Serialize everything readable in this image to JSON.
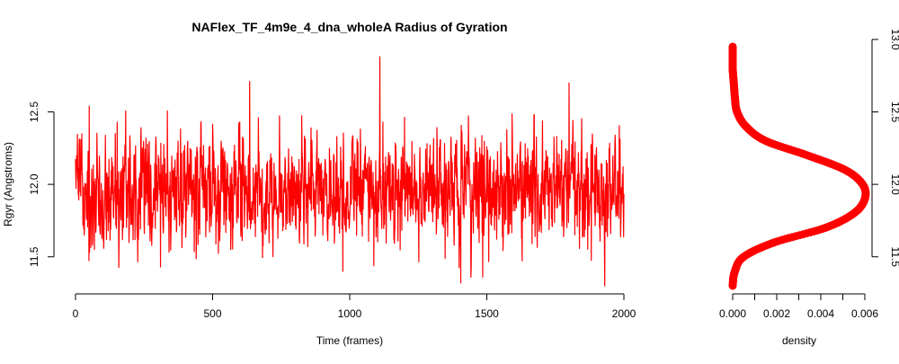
{
  "chart_data": [
    {
      "type": "line",
      "title": "NAFlex_TF_4m9e_4_dna_wholeA Radius of Gyration",
      "xlabel": "Time (frames)",
      "ylabel": "Rgyr (Angstroms)",
      "xlim": [
        0,
        2000
      ],
      "ylim": [
        11.3,
        12.9
      ],
      "x_ticks": [
        0,
        500,
        1000,
        1500,
        2000
      ],
      "y_ticks": [
        11.5,
        12.0,
        12.5
      ],
      "x_tick_labels": [
        "0",
        "500",
        "1000",
        "1500",
        "2000"
      ],
      "y_tick_labels": [
        "11.5",
        "12.0",
        "12.5"
      ],
      "grid": false,
      "series": [
        {
          "color": "#ff0000",
          "n_frames": 2000,
          "mean": 11.96,
          "sd": 0.19,
          "min": 11.3,
          "max": 12.88,
          "peaks": [
            {
              "x": 50,
              "y": 12.54
            },
            {
              "x": 310,
              "y": 11.43
            },
            {
              "x": 635,
              "y": 12.71
            },
            {
              "x": 975,
              "y": 11.4
            },
            {
              "x": 1110,
              "y": 12.88
            },
            {
              "x": 1405,
              "y": 11.32
            },
            {
              "x": 1485,
              "y": 11.36
            },
            {
              "x": 1800,
              "y": 12.7
            },
            {
              "x": 1930,
              "y": 11.3
            }
          ]
        }
      ]
    },
    {
      "type": "line",
      "title": "",
      "xlabel": "density",
      "ylabel": "",
      "xlim": [
        0,
        0.006
      ],
      "ylim": [
        11.3,
        12.9
      ],
      "x_ticks": [
        0,
        0.001,
        0.002,
        0.003,
        0.004,
        0.005,
        0.006
      ],
      "x_tick_labels": [
        "0.000",
        "0.002",
        "0.004",
        "0.006"
      ],
      "x_label_values": [
        0,
        0.002,
        0.004,
        0.006
      ],
      "y_ticks": [
        11.5,
        12.0,
        12.5,
        13.0
      ],
      "y_tick_labels": [
        "11.5",
        "12.0",
        "12.5",
        "13.0"
      ],
      "y_axis_side": "right",
      "grid": false,
      "series": [
        {
          "color": "#ff0000",
          "style": "points",
          "y": [
            11.3,
            11.4,
            11.5,
            11.6,
            11.7,
            11.8,
            11.9,
            12.0,
            12.1,
            12.2,
            12.3,
            12.4,
            12.5,
            12.6,
            12.7,
            12.8,
            12.95
          ],
          "x": [
            0.0,
            0.0001,
            0.0005,
            0.0019,
            0.0042,
            0.0055,
            0.006,
            0.0059,
            0.0051,
            0.0034,
            0.0015,
            0.0006,
            0.0002,
            0.0001,
            5e-05,
            0.0,
            0.0
          ]
        }
      ]
    }
  ]
}
